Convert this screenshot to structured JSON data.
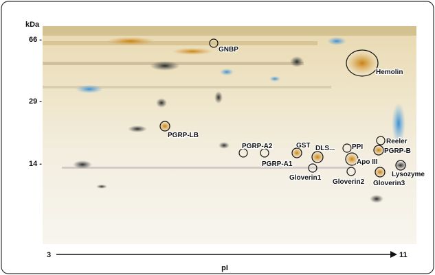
{
  "axis": {
    "unit": "kDa",
    "mw_labels": [
      "66 -",
      "29 -",
      "14 -"
    ],
    "pi_start": "3",
    "pi_end": "11",
    "pi_label": "pI"
  },
  "spots": [
    {
      "label": "GNBP"
    },
    {
      "label": "Hemolin"
    },
    {
      "label": "PGRP-LB"
    },
    {
      "label": "PGRP-A2"
    },
    {
      "label": "PGRP-A1"
    },
    {
      "label": "GST"
    },
    {
      "label": "DLS..."
    },
    {
      "label": "PPI"
    },
    {
      "label": "Apo III"
    },
    {
      "label": "Gloverin1"
    },
    {
      "label": "Gloverin2"
    },
    {
      "label": "Reeler"
    },
    {
      "label": "PGRP-B"
    },
    {
      "label": "Lysozyme"
    },
    {
      "label": "Gloverin3"
    }
  ]
}
